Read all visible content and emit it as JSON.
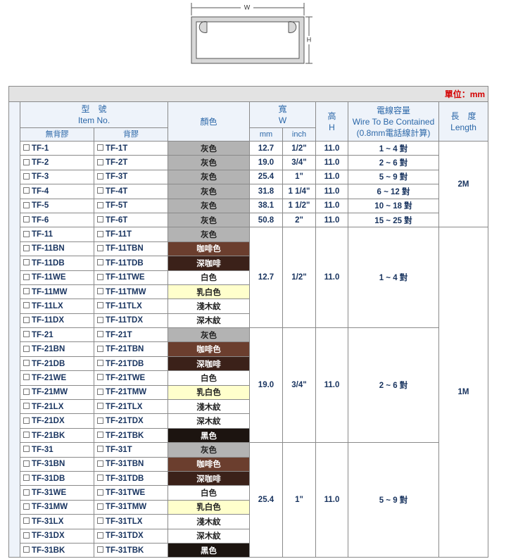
{
  "diagram": {
    "width_label": "W",
    "height_label": "H"
  },
  "unit": "單位：mm",
  "header": {
    "item_no_zh": "型　號",
    "item_no_en": "Item No.",
    "no_adhesive": "無背膠",
    "adhesive": "背膠",
    "color": "顏色",
    "width_zh": "寬",
    "width_en": "W",
    "mm": "mm",
    "inch": "inch",
    "height_zh": "高",
    "height_en": "H",
    "wire_zh": "電線容量",
    "wire_en": "Wire To Be Contained",
    "wire_note": "(0.8mm電話線計算)",
    "length_zh": "長　度",
    "length_en": "Length"
  },
  "groups": [
    {
      "length": "2M",
      "rows": [
        {
          "item": "TF-1",
          "item_adhesive": "TF-1T",
          "color": "灰色",
          "bg": "#b3b3b3",
          "mm": "12.7",
          "inch": "1/2\"",
          "h": "11.0",
          "wire": "1 ~ 4 對"
        },
        {
          "item": "TF-2",
          "item_adhesive": "TF-2T",
          "color": "灰色",
          "bg": "#b3b3b3",
          "mm": "19.0",
          "inch": "3/4\"",
          "h": "11.0",
          "wire": "2 ~ 6 對"
        },
        {
          "item": "TF-3",
          "item_adhesive": "TF-3T",
          "color": "灰色",
          "bg": "#b3b3b3",
          "mm": "25.4",
          "inch": "1\"",
          "h": "11.0",
          "wire": "5 ~ 9 對"
        },
        {
          "item": "TF-4",
          "item_adhesive": "TF-4T",
          "color": "灰色",
          "bg": "#b3b3b3",
          "mm": "31.8",
          "inch": "1 1/4\"",
          "h": "11.0",
          "wire": "6 ~ 12 對"
        },
        {
          "item": "TF-5",
          "item_adhesive": "TF-5T",
          "color": "灰色",
          "bg": "#b3b3b3",
          "mm": "38.1",
          "inch": "1 1/2\"",
          "h": "11.0",
          "wire": "10 ~ 18 對"
        },
        {
          "item": "TF-6",
          "item_adhesive": "TF-6T",
          "color": "灰色",
          "bg": "#b3b3b3",
          "mm": "50.8",
          "inch": "2\"",
          "h": "11.0",
          "wire": "15 ~ 25 對"
        }
      ]
    },
    {
      "length": "1M",
      "mm": "12.7",
      "inch": "1/2\"",
      "h": "11.0",
      "wire": "1 ~ 4 對",
      "rows": [
        {
          "item": "TF-11",
          "item_adhesive": "TF-11T",
          "color": "灰色",
          "bg": "#b3b3b3"
        },
        {
          "item": "TF-11BN",
          "item_adhesive": "TF-11TBN",
          "color": "咖啡色",
          "bg": "#6b3e2e"
        },
        {
          "item": "TF-11DB",
          "item_adhesive": "TF-11TDB",
          "color": "深咖啡",
          "bg": "#3b2119"
        },
        {
          "item": "TF-11WE",
          "item_adhesive": "TF-11TWE",
          "color": "白色",
          "bg": "#ffffff"
        },
        {
          "item": "TF-11MW",
          "item_adhesive": "TF-11TMW",
          "color": "乳白色",
          "bg": "#ffffcc"
        },
        {
          "item": "TF-11LX",
          "item_adhesive": "TF-11TLX",
          "color": "淺木紋",
          "bg": "#ffffff"
        },
        {
          "item": "TF-11DX",
          "item_adhesive": "TF-11TDX",
          "color": "深木紋",
          "bg": "#ffffff"
        }
      ]
    },
    {
      "mm": "19.0",
      "inch": "3/4\"",
      "h": "11.0",
      "wire": "2 ~ 6 對",
      "rows": [
        {
          "item": "TF-21",
          "item_adhesive": "TF-21T",
          "color": "灰色",
          "bg": "#b3b3b3"
        },
        {
          "item": "TF-21BN",
          "item_adhesive": "TF-21TBN",
          "color": "咖啡色",
          "bg": "#6b3e2e"
        },
        {
          "item": "TF-21DB",
          "item_adhesive": "TF-21TDB",
          "color": "深咖啡",
          "bg": "#3b2119"
        },
        {
          "item": "TF-21WE",
          "item_adhesive": "TF-21TWE",
          "color": "白色",
          "bg": "#ffffff"
        },
        {
          "item": "TF-21MW",
          "item_adhesive": "TF-21TMW",
          "color": "乳白色",
          "bg": "#ffffcc"
        },
        {
          "item": "TF-21LX",
          "item_adhesive": "TF-21TLX",
          "color": "淺木紋",
          "bg": "#ffffff"
        },
        {
          "item": "TF-21DX",
          "item_adhesive": "TF-21TDX",
          "color": "深木紋",
          "bg": "#ffffff"
        },
        {
          "item": "TF-21BK",
          "item_adhesive": "TF-21TBK",
          "color": "黑色",
          "bg": "#1c1410"
        }
      ]
    },
    {
      "mm": "25.4",
      "inch": "1\"",
      "h": "11.0",
      "wire": "5 ~ 9 對",
      "rows": [
        {
          "item": "TF-31",
          "item_adhesive": "TF-31T",
          "color": "灰色",
          "bg": "#b3b3b3"
        },
        {
          "item": "TF-31BN",
          "item_adhesive": "TF-31TBN",
          "color": "咖啡色",
          "bg": "#6b3e2e"
        },
        {
          "item": "TF-31DB",
          "item_adhesive": "TF-31TDB",
          "color": "深咖啡",
          "bg": "#3b2119"
        },
        {
          "item": "TF-31WE",
          "item_adhesive": "TF-31TWE",
          "color": "白色",
          "bg": "#ffffff"
        },
        {
          "item": "TF-31MW",
          "item_adhesive": "TF-31TMW",
          "color": "乳白色",
          "bg": "#ffffcc"
        },
        {
          "item": "TF-31LX",
          "item_adhesive": "TF-31TLX",
          "color": "淺木紋",
          "bg": "#ffffff"
        },
        {
          "item": "TF-31DX",
          "item_adhesive": "TF-31TDX",
          "color": "深木紋",
          "bg": "#ffffff"
        },
        {
          "item": "TF-31BK",
          "item_adhesive": "TF-31TBK",
          "color": "黑色",
          "bg": "#1c1410"
        }
      ]
    }
  ]
}
